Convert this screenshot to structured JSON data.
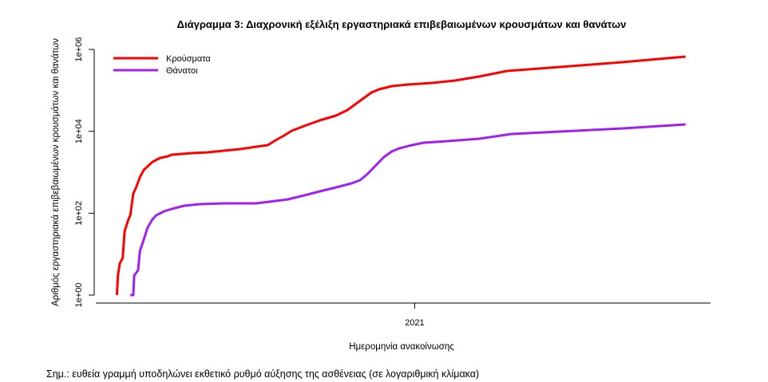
{
  "chart_data": {
    "type": "line",
    "title": "Διάγραμμα 3: Διαχρονική εξέλιξη εργαστηριακά επιβεβαιωμένων κρουσμάτων και θανάτων",
    "xlabel": "Ημερομηνία ανακοίνωσης",
    "ylabel": "Αριθμός εργαστηριακά επιβεβαιωμένων κρουσμάτων και θανάτων",
    "x_unit": "days since 2020-02-26",
    "xlim": [
      -22,
      618
    ],
    "x_ticks": [
      {
        "value": 310,
        "label": "2021"
      }
    ],
    "y_scale": "log",
    "ylim": [
      1,
      1000000
    ],
    "y_ticks": [
      {
        "value": 1,
        "label": "1e+00"
      },
      {
        "value": 100,
        "label": "1e+02"
      },
      {
        "value": 10000,
        "label": "1e+04"
      },
      {
        "value": 1000000,
        "label": "1e+06"
      }
    ],
    "legend_position": "top-left",
    "grid": false,
    "note": "Σημ.: ευθεία γραμμή υποδηλώνει εκθετικό ρυθμό αύξησης της ασθένειας (σε λογαριθμική κλίμακα)",
    "series": [
      {
        "name": "Κρούσματα",
        "color": "#ff0000",
        "x": [
          0,
          1,
          3,
          6,
          8,
          12,
          14,
          17,
          20,
          24,
          28,
          37,
          45,
          53,
          57,
          78,
          95,
          111,
          128,
          145,
          157,
          165,
          174,
          182,
          195,
          211,
          228,
          240,
          249,
          257,
          265,
          273,
          286,
          303,
          328,
          352,
          377,
          394,
          406,
          461,
          527,
          592
        ],
        "y": [
          1,
          3,
          6,
          8,
          36,
          71,
          89,
          298,
          427,
          764,
          1145,
          1792,
          2243,
          2454,
          2685,
          2937,
          3070,
          3358,
          3675,
          4206,
          4600,
          6022,
          7875,
          10310,
          13490,
          18460,
          24160,
          33110,
          47430,
          64860,
          88720,
          106200,
          127000,
          139000,
          152000,
          174000,
          218000,
          261000,
          298000,
          373000,
          489000,
          668000
        ]
      },
      {
        "name": "Θάνατοι",
        "color": "#a020f0",
        "x": [
          14,
          17,
          18,
          22,
          24,
          28,
          32,
          37,
          41,
          49,
          57,
          70,
          86,
          111,
          145,
          165,
          178,
          195,
          211,
          228,
          244,
          253,
          261,
          269,
          278,
          286,
          294,
          307,
          319,
          344,
          377,
          411,
          461,
          527,
          592
        ],
        "y": [
          1,
          1,
          3,
          4,
          12,
          23,
          45,
          71,
          89,
          111,
          127,
          152,
          166,
          174,
          174,
          199,
          218,
          272,
          341,
          427,
          534,
          639,
          915,
          1432,
          2345,
          3211,
          3844,
          4600,
          5260,
          5755,
          6580,
          8613,
          9855,
          11800,
          14760
        ]
      }
    ]
  }
}
